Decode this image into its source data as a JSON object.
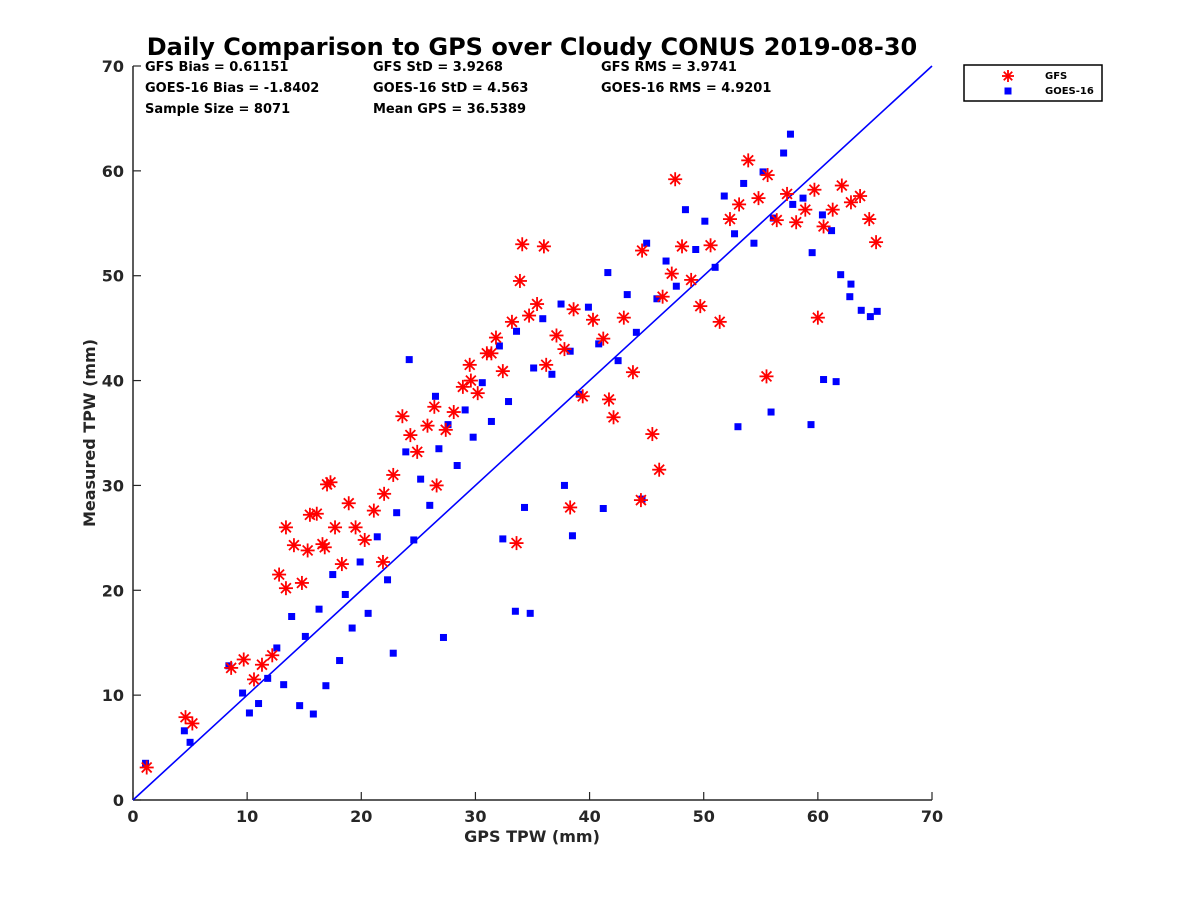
{
  "colors": {
    "gfs": "#ff0000",
    "goes": "#0000ff",
    "axis": "#262626",
    "one_to_one": "#0000ff"
  },
  "chart_data": {
    "type": "scatter",
    "title": "Daily Comparison to GPS over Cloudy CONUS 2019-08-30",
    "xlabel": "GPS TPW (mm)",
    "ylabel": "Measured TPW (mm)",
    "xlim": [
      0,
      70
    ],
    "ylim": [
      0,
      70
    ],
    "xticks": [
      "0",
      "10",
      "20",
      "30",
      "40",
      "50",
      "60",
      "70"
    ],
    "yticks": [
      "0",
      "10",
      "20",
      "30",
      "40",
      "50",
      "60",
      "70"
    ],
    "grid": false,
    "legend_position": "top-right outside",
    "stats": [
      "GFS Bias = 0.61151",
      "GFS StD = 3.9268",
      "GFS RMS = 3.9741",
      "GOES-16 Bias = -1.8402",
      "GOES-16 StD = 4.563",
      "GOES-16 RMS = 4.9201",
      "Sample Size = 8071",
      "Mean GPS = 36.5389"
    ],
    "reference_line": {
      "name": "1:1 line",
      "x": [
        0,
        70
      ],
      "y": [
        0,
        70
      ]
    },
    "series": [
      {
        "name": "GFS",
        "marker": "asterisk",
        "color": "#ff0000",
        "x": [
          1.2,
          4.6,
          5.2,
          8.6,
          9.7,
          10.6,
          11.3,
          12.2,
          12.8,
          13.4,
          14.1,
          14.8,
          15.3,
          16.1,
          16.6,
          17.0,
          17.7,
          18.3,
          18.9,
          19.5,
          20.3,
          21.1,
          22.0,
          22.8,
          23.6,
          24.3,
          24.9,
          25.8,
          26.6,
          27.4,
          28.1,
          28.9,
          29.5,
          30.2,
          31.0,
          31.8,
          32.4,
          33.2,
          33.9,
          34.7,
          35.4,
          36.2,
          37.1,
          37.8,
          38.6,
          39.4,
          40.3,
          41.2,
          42.1,
          43.0,
          43.8,
          44.6,
          45.5,
          46.4,
          47.2,
          48.1,
          48.9,
          49.7,
          50.6,
          51.4,
          52.3,
          53.1,
          53.9,
          54.8,
          55.6,
          56.4,
          57.3,
          58.1,
          58.9,
          59.7,
          60.5,
          61.3,
          62.1,
          62.9,
          63.7,
          64.5,
          65.1,
          34.1,
          36.0,
          44.5,
          46.1,
          47.5,
          55.5,
          60.0,
          41.7,
          38.3,
          33.6,
          21.9,
          13.4,
          16.8,
          17.3,
          15.5,
          26.4,
          29.6,
          31.4
        ],
        "y": [
          3.1,
          7.9,
          7.3,
          12.6,
          13.4,
          11.5,
          12.9,
          13.8,
          21.5,
          20.2,
          24.3,
          20.7,
          23.8,
          27.3,
          24.4,
          30.1,
          26.0,
          22.5,
          28.3,
          26.0,
          24.8,
          27.6,
          29.2,
          31.0,
          36.6,
          34.8,
          33.2,
          35.7,
          30.0,
          35.3,
          37.0,
          39.4,
          41.5,
          38.8,
          42.6,
          44.1,
          40.9,
          45.6,
          49.5,
          46.2,
          47.3,
          41.5,
          44.3,
          43.0,
          46.8,
          38.5,
          45.8,
          44.0,
          36.5,
          46.0,
          40.8,
          52.4,
          34.9,
          48.0,
          50.2,
          52.8,
          49.6,
          47.1,
          52.9,
          45.6,
          55.4,
          56.8,
          61.0,
          57.4,
          59.6,
          55.3,
          57.8,
          55.1,
          56.3,
          58.2,
          54.7,
          56.3,
          58.6,
          57.0,
          57.6,
          55.4,
          53.2,
          53.0,
          52.8,
          28.6,
          31.5,
          59.2,
          40.4,
          46.0,
          38.2,
          27.9,
          24.5,
          22.7,
          26.0,
          24.1,
          30.3,
          27.2,
          37.5,
          40.0,
          42.6
        ]
      },
      {
        "name": "GOES-16",
        "marker": "square",
        "color": "#0000ff",
        "x": [
          1.1,
          4.5,
          5.0,
          8.4,
          9.6,
          10.2,
          11.0,
          11.8,
          12.6,
          13.2,
          13.9,
          14.6,
          15.1,
          15.8,
          16.3,
          16.9,
          17.5,
          18.1,
          18.6,
          19.2,
          19.9,
          20.6,
          21.4,
          22.3,
          23.1,
          23.9,
          24.6,
          25.2,
          26.0,
          26.8,
          27.6,
          28.4,
          29.1,
          29.8,
          30.6,
          31.4,
          32.1,
          32.9,
          33.6,
          34.3,
          35.1,
          35.9,
          36.7,
          37.5,
          38.3,
          39.1,
          39.9,
          40.8,
          41.6,
          42.5,
          43.3,
          44.1,
          45.0,
          45.9,
          46.7,
          47.6,
          48.4,
          49.3,
          50.1,
          51.0,
          51.8,
          52.7,
          53.5,
          54.4,
          55.2,
          56.1,
          57.0,
          57.8,
          58.7,
          59.5,
          60.4,
          61.2,
          62.0,
          62.9,
          63.8,
          64.6,
          65.2,
          24.2,
          26.5,
          33.5,
          34.8,
          38.5,
          41.2,
          44.6,
          53.0,
          55.9,
          57.6,
          59.4,
          60.5,
          61.6,
          62.8,
          37.8,
          32.4,
          27.2,
          22.8
        ],
        "y": [
          3.5,
          6.6,
          5.5,
          12.8,
          10.2,
          8.3,
          9.2,
          11.6,
          14.5,
          11.0,
          17.5,
          9.0,
          15.6,
          8.2,
          18.2,
          10.9,
          21.5,
          13.3,
          19.6,
          16.4,
          22.7,
          17.8,
          25.1,
          21.0,
          27.4,
          33.2,
          24.8,
          30.6,
          28.1,
          33.5,
          35.8,
          31.9,
          37.2,
          34.6,
          39.8,
          36.1,
          43.3,
          38.0,
          44.7,
          27.9,
          41.2,
          45.9,
          40.6,
          47.3,
          42.8,
          38.7,
          47.0,
          43.5,
          50.3,
          41.9,
          48.2,
          44.6,
          53.1,
          47.8,
          51.4,
          49.0,
          56.3,
          52.5,
          55.2,
          50.8,
          57.6,
          54.0,
          58.8,
          53.1,
          59.9,
          55.5,
          61.7,
          56.8,
          57.4,
          52.2,
          55.8,
          54.3,
          50.1,
          49.2,
          46.7,
          46.1,
          46.6,
          42.0,
          38.5,
          18.0,
          17.8,
          25.2,
          27.8,
          28.7,
          35.6,
          37.0,
          63.5,
          35.8,
          40.1,
          39.9,
          48.0,
          30.0,
          24.9,
          15.5,
          14.0
        ]
      }
    ]
  }
}
